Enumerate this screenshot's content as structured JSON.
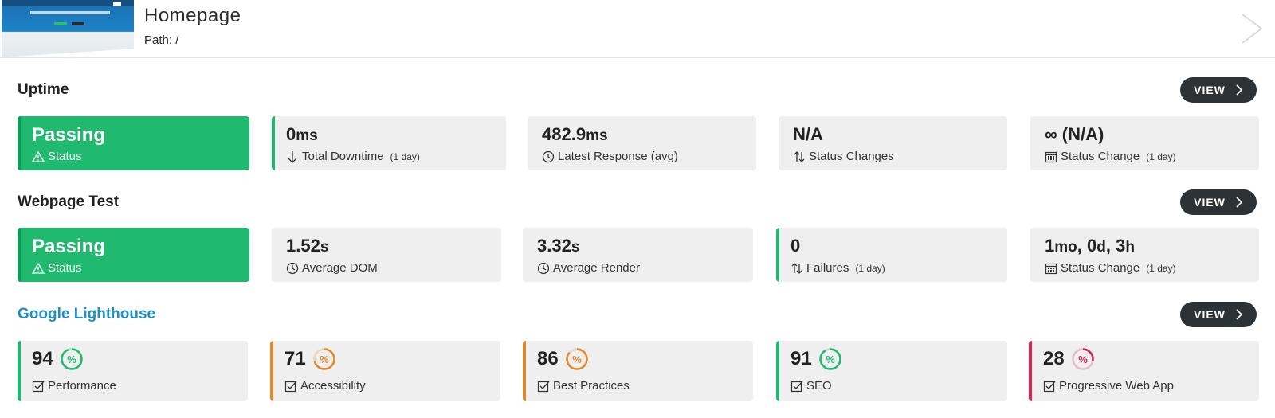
{
  "header": {
    "title": "Homepage",
    "path": "Path: /"
  },
  "sections": {
    "uptime": {
      "title": "Uptime",
      "view_label": "VIEW"
    },
    "webpage": {
      "title": "Webpage Test",
      "view_label": "VIEW"
    },
    "lighthouse": {
      "title": "Google Lighthouse",
      "view_label": "VIEW"
    }
  },
  "uptime": {
    "status": {
      "value": "Passing",
      "label": "Status"
    },
    "downtime": {
      "value": "0",
      "unit": "ms",
      "label": "Total Downtime",
      "period": "(1 day)",
      "icon": "arrow-down-icon"
    },
    "response": {
      "value": "482.9",
      "unit": "ms",
      "label": "Latest Response (avg)",
      "icon": "clock-icon"
    },
    "changes": {
      "value": "N/A",
      "label": "Status Changes",
      "icon": "swap-arrows-icon"
    },
    "status_change": {
      "value": "∞ (N/A)",
      "label": "Status Change",
      "period": "(1 day)",
      "icon": "calendar-icon"
    }
  },
  "webpage": {
    "status": {
      "value": "Passing",
      "label": "Status"
    },
    "dom": {
      "value": "1.52",
      "unit": "s",
      "label": "Average DOM",
      "icon": "clock-icon"
    },
    "render": {
      "value": "3.32",
      "unit": "s",
      "label": "Average Render",
      "icon": "clock-icon"
    },
    "failures": {
      "value": "0",
      "label": "Failures",
      "period": "(1 day)",
      "icon": "swap-arrows-icon"
    },
    "status_change": {
      "v1": "1",
      "u1": "mo",
      "sep1": ", ",
      "v2": "0",
      "u2": "d",
      "sep2": ", ",
      "v3": "3",
      "u3": "h",
      "label": "Status Change",
      "period": "(1 day)",
      "icon": "calendar-icon"
    }
  },
  "lighthouse": {
    "scores": [
      {
        "value": "94",
        "label": "Performance",
        "score": 0.94,
        "color": "#1fba6f"
      },
      {
        "value": "71",
        "label": "Accessibility",
        "score": 0.71,
        "color": "#e0882a"
      },
      {
        "value": "86",
        "label": "Best Practices",
        "score": 0.86,
        "color": "#e0882a"
      },
      {
        "value": "91",
        "label": "SEO",
        "score": 0.91,
        "color": "#1fba6f"
      },
      {
        "value": "28",
        "label": "Progressive Web App",
        "score": 0.28,
        "color": "#d9254e"
      }
    ],
    "ring_symbol": "%"
  },
  "colors": {
    "green": "#1fba6f",
    "orange": "#e0882a",
    "red": "#d9254e",
    "link": "#1d8fc9",
    "button": "#2d3236"
  }
}
